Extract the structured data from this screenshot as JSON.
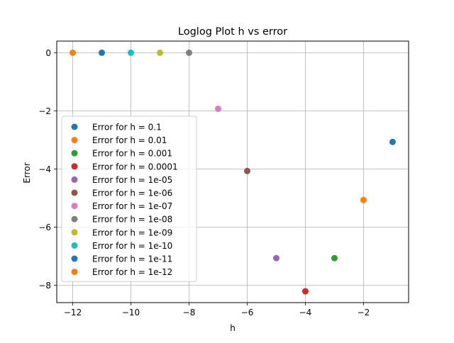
{
  "chart_data": {
    "type": "scatter",
    "title": "Loglog Plot h vs error",
    "xlabel": "h",
    "ylabel": "Error",
    "xlim": [
      -12.55,
      -0.45
    ],
    "ylim": [
      -8.6,
      0.4
    ],
    "grid": true,
    "legend_position": "lower left",
    "x_ticks": [
      -12,
      -10,
      -8,
      -6,
      -4,
      -2
    ],
    "x_tick_labels": [
      "−12",
      "−10",
      "−8",
      "−6",
      "−4",
      "−2"
    ],
    "y_ticks": [
      0,
      -2,
      -4,
      -6,
      -8
    ],
    "y_tick_labels": [
      "0",
      "−2",
      "−4",
      "−6",
      "−8"
    ],
    "series": [
      {
        "name": "Error for h = 0.1",
        "x": -1,
        "y": -3.07,
        "color": "#1f77b4"
      },
      {
        "name": "Error for h = 0.01",
        "x": -2,
        "y": -5.07,
        "color": "#ff7f0e"
      },
      {
        "name": "Error for h = 0.001",
        "x": -3,
        "y": -7.07,
        "color": "#2ca02c"
      },
      {
        "name": "Error for h = 0.0001",
        "x": -4,
        "y": -8.21,
        "color": "#d62728"
      },
      {
        "name": "Error for h = 1e-05",
        "x": -5,
        "y": -7.07,
        "color": "#9467bd"
      },
      {
        "name": "Error for h = 1e-06",
        "x": -6,
        "y": -4.07,
        "color": "#8c564b"
      },
      {
        "name": "Error for h = 1e-07",
        "x": -7,
        "y": -1.93,
        "color": "#e377c2"
      },
      {
        "name": "Error for h = 1e-08",
        "x": -8,
        "y": 0,
        "color": "#7f7f7f"
      },
      {
        "name": "Error for h = 1e-09",
        "x": -9,
        "y": 0,
        "color": "#bcbd22"
      },
      {
        "name": "Error for h = 1e-10",
        "x": -10,
        "y": 0,
        "color": "#17becf"
      },
      {
        "name": "Error for h = 1e-11",
        "x": -11,
        "y": 0,
        "color": "#1f77b4"
      },
      {
        "name": "Error for h = 1e-12",
        "x": -12,
        "y": 0,
        "color": "#ff7f0e"
      }
    ]
  }
}
